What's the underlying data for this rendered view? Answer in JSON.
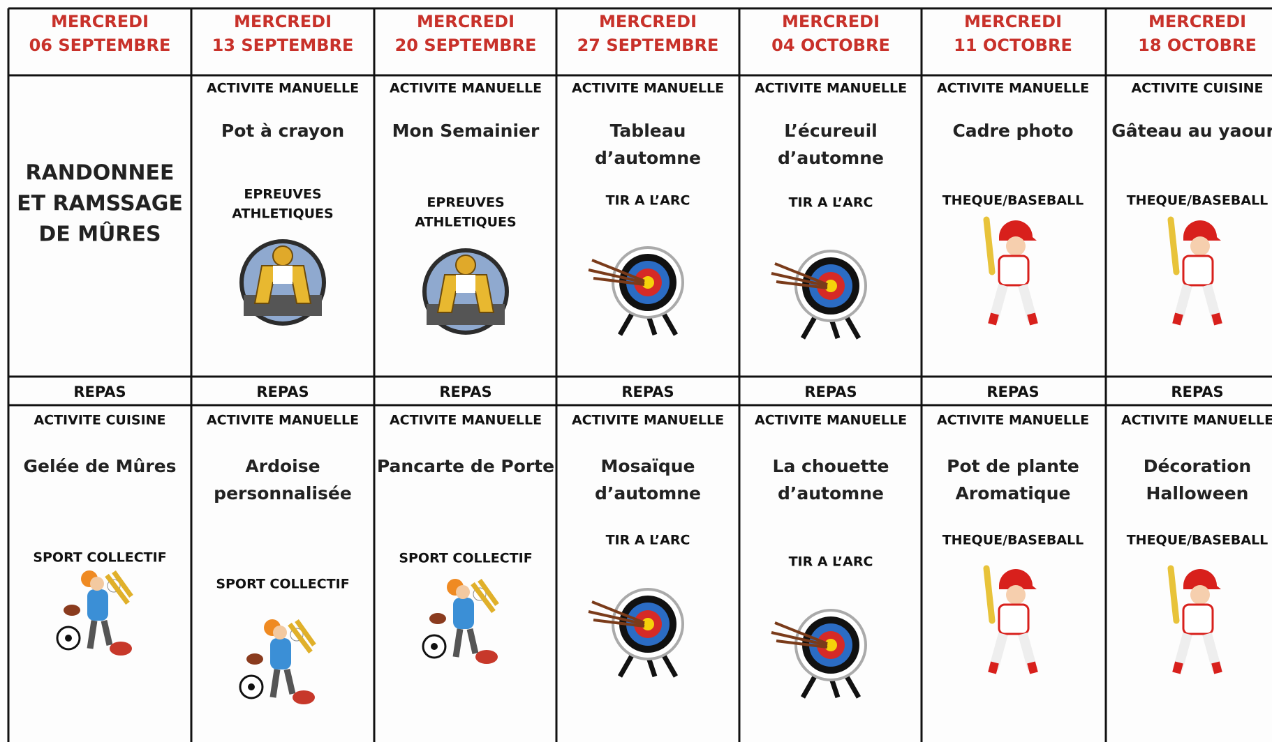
{
  "columns": [
    {
      "day": "MERCREDI",
      "date": "06 SEPTEMBRE",
      "morning": {
        "title": [
          "RANDONNEE",
          "ET RAMSSAGE",
          "DE MÛRES"
        ]
      },
      "meal": "REPAS",
      "afternoon": {
        "type": "ACTIVITE CUISINE",
        "activity": [
          "Gelée de Mûres"
        ],
        "sport": [
          "SPORT COLLECTIF"
        ]
      }
    },
    {
      "day": "MERCREDI",
      "date": "13 SEPTEMBRE",
      "morning": {
        "type": "ACTIVITE MANUELLE",
        "activity": [
          "Pot à crayon"
        ],
        "sport": [
          "EPREUVES",
          "ATHLETIQUES"
        ]
      },
      "meal": "REPAS",
      "afternoon": {
        "type": "ACTIVITE MANUELLE",
        "activity": [
          "Ardoise",
          "personnalisée"
        ],
        "sport": [
          "SPORT COLLECTIF"
        ]
      }
    },
    {
      "day": "MERCREDI",
      "date": "20 SEPTEMBRE",
      "morning": {
        "type": "ACTIVITE MANUELLE",
        "activity": [
          "Mon Semainier"
        ],
        "sport": [
          "EPREUVES",
          "ATHLETIQUES"
        ]
      },
      "meal": "REPAS",
      "afternoon": {
        "type": "ACTIVITE MANUELLE",
        "activity": [
          "Pancarte de Porte"
        ],
        "sport": [
          "SPORT COLLECTIF"
        ]
      }
    },
    {
      "day": "MERCREDI",
      "date": "27 SEPTEMBRE",
      "morning": {
        "type": "ACTIVITE MANUELLE",
        "activity": [
          "Tableau",
          "d’automne"
        ],
        "sport": [
          "TIR A L’ARC"
        ]
      },
      "meal": "REPAS",
      "afternoon": {
        "type": "ACTIVITE MANUELLE",
        "activity": [
          "Mosaïque",
          "d’automne"
        ],
        "sport": [
          "TIR A L’ARC"
        ]
      }
    },
    {
      "day": "MERCREDI",
      "date": "04 OCTOBRE",
      "morning": {
        "type": "ACTIVITE MANUELLE",
        "activity": [
          "L’écureuil",
          "d’automne"
        ],
        "sport": [
          "TIR A L’ARC"
        ]
      },
      "meal": "REPAS",
      "afternoon": {
        "type": "ACTIVITE MANUELLE",
        "activity": [
          "La chouette",
          "d’automne"
        ],
        "sport": [
          "TIR A L’ARC"
        ]
      }
    },
    {
      "day": "MERCREDI",
      "date": "11 OCTOBRE",
      "morning": {
        "type": "ACTIVITE MANUELLE",
        "activity": [
          "Cadre photo"
        ],
        "sport": [
          "THEQUE/BASEBALL"
        ]
      },
      "meal": "REPAS",
      "afternoon": {
        "type": "ACTIVITE MANUELLE",
        "activity": [
          "Pot de plante",
          "Aromatique"
        ],
        "sport": [
          "THEQUE/BASEBALL"
        ]
      }
    },
    {
      "day": "MERCREDI",
      "date": "18 OCTOBRE",
      "morning": {
        "type": "ACTIVITE CUISINE",
        "activity": [
          "Gâteau au yaourt"
        ],
        "sport": [
          "THEQUE/BASEBALL"
        ]
      },
      "meal": "REPAS",
      "afternoon": {
        "type": "ACTIVITE MANUELLE",
        "activity": [
          "Décoration",
          "Halloween"
        ],
        "sport": [
          "THEQUE/BASEBALL"
        ]
      }
    }
  ]
}
